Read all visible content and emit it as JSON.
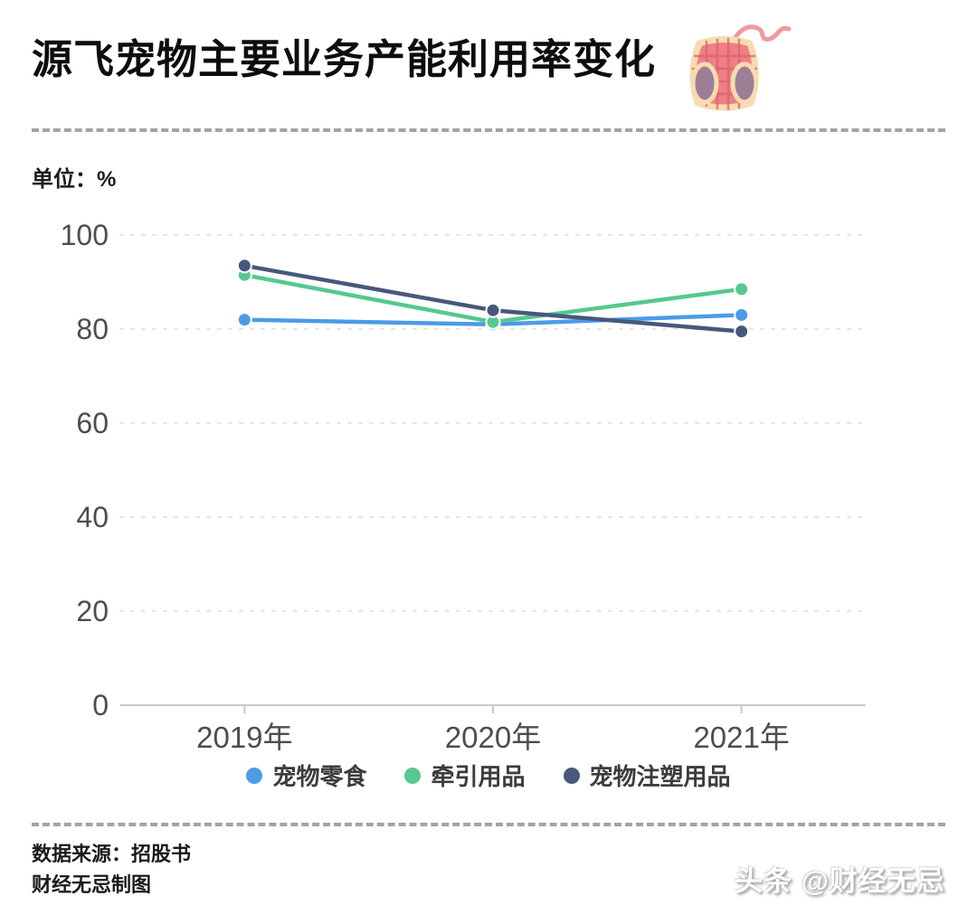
{
  "title": "源飞宠物主要业务产能利用率变化",
  "title_icon": "pet-harness-icon",
  "unit_label": "单位：%",
  "chart_data": {
    "type": "line",
    "categories": [
      "2019年",
      "2020年",
      "2021年"
    ],
    "series": [
      {
        "name": "宠物零食",
        "color": "#4C9BE8",
        "values": [
          82,
          81,
          83
        ]
      },
      {
        "name": "牵引用品",
        "color": "#55C890",
        "values": [
          91.5,
          81.5,
          88.5
        ]
      },
      {
        "name": "宠物注塑用品",
        "color": "#47587C",
        "values": [
          93.5,
          84,
          79.5
        ]
      }
    ],
    "ylabel": "%",
    "ylim": [
      0,
      100
    ],
    "yticks": [
      0,
      20,
      40,
      60,
      80,
      100
    ],
    "grid": "horizontal dashed gridlines, solid baseline",
    "legend_position": "bottom",
    "axis_color": "#c9c9c9",
    "grid_color": "#e4e4e4",
    "tick_label_color": "#4d4d4d"
  },
  "footer": {
    "source": "数据来源：招股书",
    "credit": "财经无忌制图",
    "watermark": "头条 @财经无忌"
  }
}
